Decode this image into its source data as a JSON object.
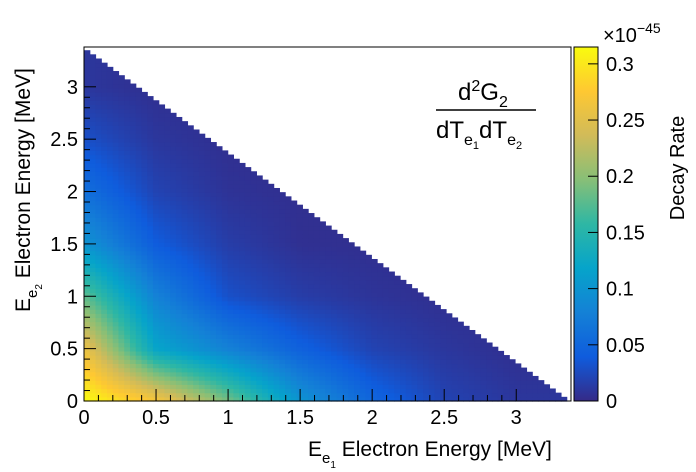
{
  "chart_data": {
    "type": "heatmap",
    "title": "",
    "annotation": {
      "numerator_base": "d",
      "numerator_sup": "2",
      "numerator_var": "G",
      "numerator_sub": "2",
      "denominator_base_1": "dT",
      "denominator_sub_1_base": "e",
      "denominator_sub_1_sub": "1",
      "denominator_base_2": "dT",
      "denominator_sub_2_base": "e",
      "denominator_sub_2_sub": "2"
    },
    "xlabel": {
      "prefix": "E",
      "sub": "e",
      "subsub": "1",
      "text": " Electron Energy [MeV]"
    },
    "ylabel": {
      "prefix": "E",
      "sub": "e",
      "subsub": "2",
      "text": " Electron Energy [MeV]"
    },
    "xlim": [
      0,
      3.38
    ],
    "ylim": [
      0,
      3.38
    ],
    "q_value": 3.35,
    "x_ticks": [
      0,
      0.5,
      1,
      1.5,
      2,
      2.5,
      3
    ],
    "x_tick_labels": [
      "0",
      "0.5",
      "1",
      "1.5",
      "2",
      "2.5",
      "3"
    ],
    "y_ticks": [
      0,
      0.5,
      1,
      1.5,
      2,
      2.5,
      3
    ],
    "y_tick_labels": [
      "0",
      "0.5",
      "1",
      "1.5",
      "2",
      "2.5",
      "3"
    ],
    "colorbar": {
      "label": "Decay Rate",
      "multiplier_text": "×10",
      "multiplier_exponent": "−45",
      "range": [
        0,
        0.315
      ],
      "ticks": [
        0,
        0.05,
        0.1,
        0.15,
        0.2,
        0.25,
        0.3
      ],
      "tick_labels": [
        "0",
        "0.05",
        "0.1",
        "0.15",
        "0.2",
        "0.25",
        "0.3"
      ]
    },
    "colormap": [
      "#352a87",
      "#0f5cdd",
      "#1481d6",
      "#06a4ca",
      "#2eb7a4",
      "#87bf77",
      "#d1bb59",
      "#fec832",
      "#f9fb0e"
    ],
    "region": "E_e1 + E_e2 <= Q",
    "values_grid": {
      "x": [
        0,
        0.5,
        1,
        1.5,
        2,
        2.5,
        3
      ],
      "y": [
        0,
        0.5,
        1,
        1.5,
        2,
        2.5,
        3
      ],
      "z": [
        [
          0.315,
          0.27,
          0.19,
          0.1,
          0.05,
          0.02,
          0.01
        ],
        [
          0.26,
          0.12,
          0.08,
          0.045,
          0.02,
          0.01,
          null
        ],
        [
          0.18,
          0.08,
          0.03,
          0.015,
          0.008,
          null,
          null
        ],
        [
          0.1,
          0.04,
          0.015,
          0.005,
          null,
          null,
          null
        ],
        [
          0.06,
          0.02,
          0.007,
          null,
          null,
          null,
          null
        ],
        [
          0.03,
          0.01,
          null,
          null,
          null,
          null,
          null
        ],
        [
          0.01,
          null,
          null,
          null,
          null,
          null,
          null
        ]
      ]
    },
    "grid": false,
    "legend": "none"
  }
}
